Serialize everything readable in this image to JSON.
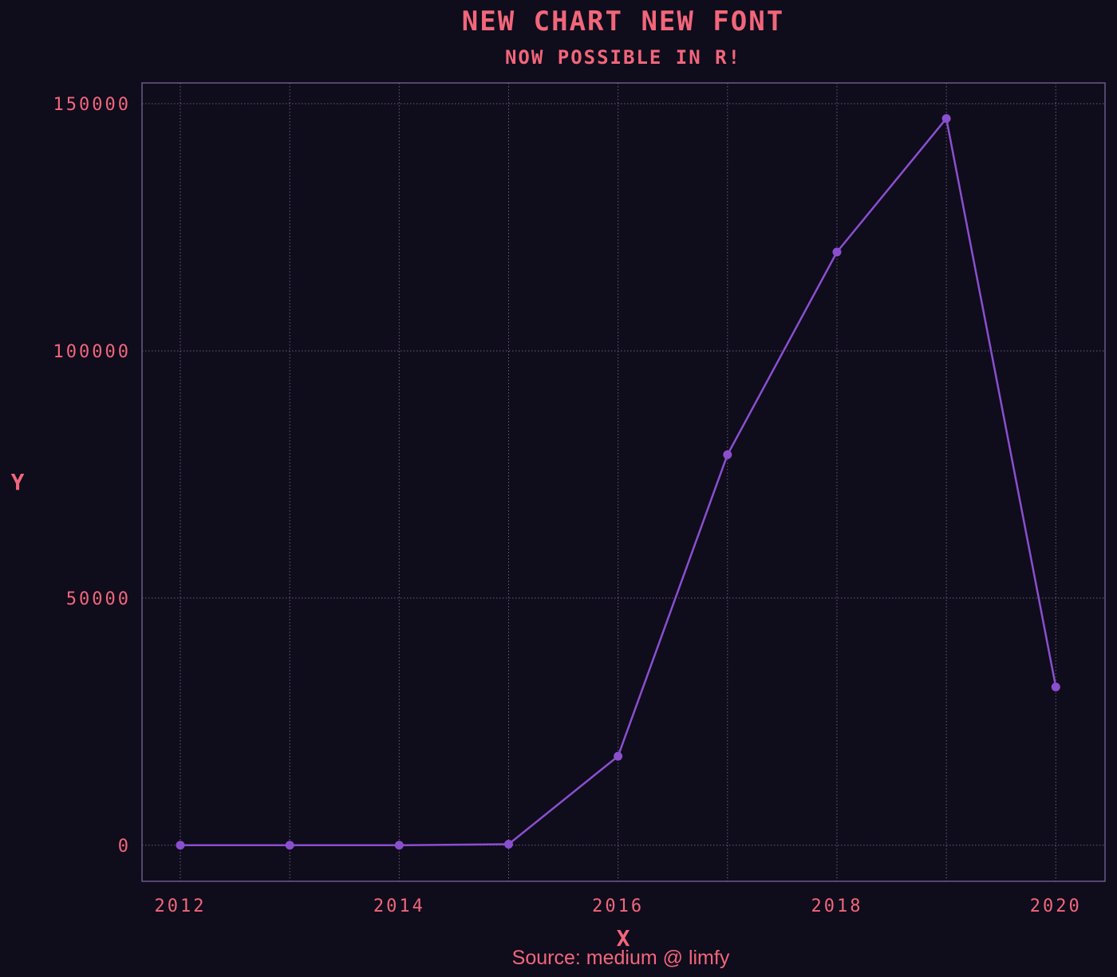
{
  "chart_data": {
    "type": "line",
    "title": "NEW CHART NEW FONT",
    "subtitle": "NOW POSSIBLE IN R!",
    "xlabel": "X",
    "ylabel": "Y",
    "caption": "Source: medium @ limfy",
    "x": [
      2012,
      2013,
      2014,
      2015,
      2016,
      2017,
      2018,
      2019,
      2020
    ],
    "values": [
      0,
      0,
      0,
      200,
      18000,
      79000,
      120000,
      147000,
      32000
    ],
    "xlim": [
      2011.65,
      2020.45
    ],
    "ylim": [
      -7300,
      154200
    ],
    "x_ticks": [
      2012,
      2014,
      2016,
      2018,
      2020
    ],
    "x_minor_gridlines": [
      2013,
      2015,
      2017,
      2019
    ],
    "y_ticks": [
      0,
      50000,
      100000,
      150000
    ],
    "grid": true,
    "legend": "none",
    "colors": {
      "background": "#0f0c1c",
      "text": "#f2667a",
      "line": "#8a4fcf",
      "grid": "#6f5c7c",
      "panel_border": "#6a5a8a"
    }
  }
}
